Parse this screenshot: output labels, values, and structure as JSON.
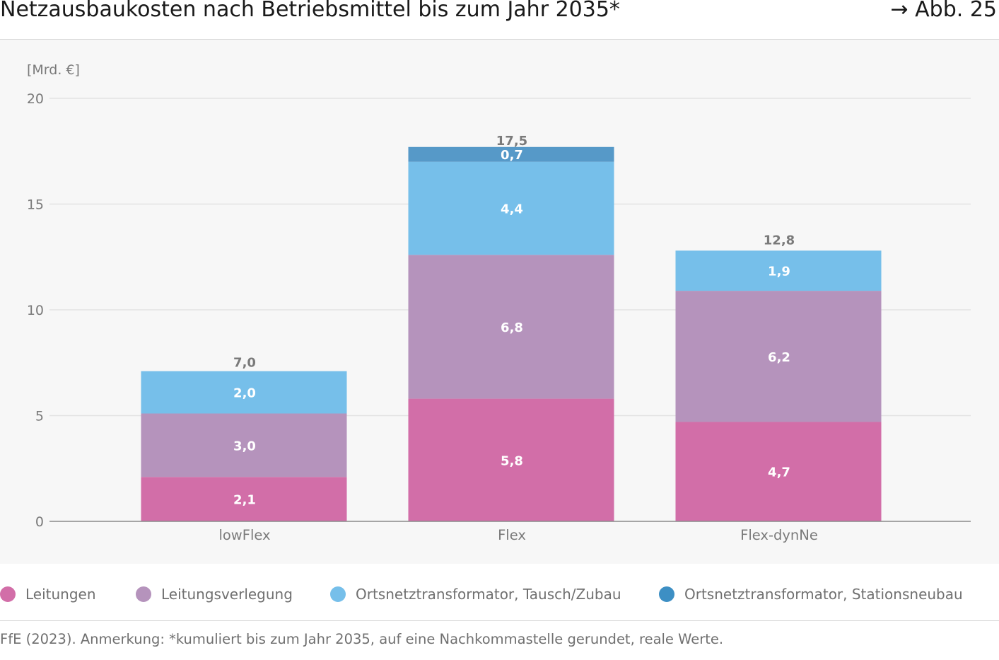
{
  "header": {
    "title": "Netzausbaukosten nach Betriebsmittel bis zum Jahr 2035*",
    "figure_ref": "→ Abb. 25"
  },
  "chart_data": {
    "type": "bar",
    "stacked": true,
    "title": "Netzausbaukosten nach Betriebsmittel bis zum Jahr 2035*",
    "ylabel": "[Mrd. €]",
    "xlabel": "",
    "ylim": [
      0,
      20
    ],
    "yticks": [
      0,
      5,
      10,
      15,
      20
    ],
    "ytick_labels": [
      "0",
      "5",
      "10",
      "15",
      "20"
    ],
    "grid": true,
    "legend_position": "bottom",
    "categories": [
      "lowFlex",
      "Flex",
      "Flex-dynNe"
    ],
    "series": [
      {
        "name": "Leitungen",
        "color": "#d26ea8",
        "values": [
          2.1,
          5.8,
          4.7
        ],
        "labels": [
          "2,1",
          "5,8",
          "4,7"
        ]
      },
      {
        "name": "Leitungsverlegung",
        "color": "#b593bc",
        "values": [
          3.0,
          6.8,
          6.2
        ],
        "labels": [
          "3,0",
          "6,8",
          "6,2"
        ]
      },
      {
        "name": "Ortsnetztransformator, Tausch/Zubau",
        "color": "#76bfea",
        "values": [
          2.0,
          4.4,
          1.9
        ],
        "labels": [
          "2,0",
          "4,4",
          "1,9"
        ]
      },
      {
        "name": "Ortsnetztransformator, Stationsneubau",
        "color": "#5699c8",
        "values": [
          0,
          0.7,
          0
        ],
        "labels": [
          "",
          "0,7",
          ""
        ]
      }
    ],
    "totals": [
      7.0,
      17.5,
      12.8
    ],
    "total_labels": [
      "7,0",
      "17,5",
      "12,8"
    ]
  },
  "legend": {
    "items": [
      {
        "label": "Leitungen",
        "color": "#d26ea8"
      },
      {
        "label": "Leitungsverlegung",
        "color": "#b593bc"
      },
      {
        "label": "Ortsnetztransformator, Tausch/Zubau",
        "color": "#76bfea"
      },
      {
        "label": "Ortsnetztransformator, Stationsneubau",
        "color": "#3d8fc4"
      }
    ]
  },
  "footer": {
    "source": "FfE (2023). Anmerkung: *kumuliert bis zum Jahr 2035, auf eine Nachkommastelle gerundet, reale Werte."
  }
}
